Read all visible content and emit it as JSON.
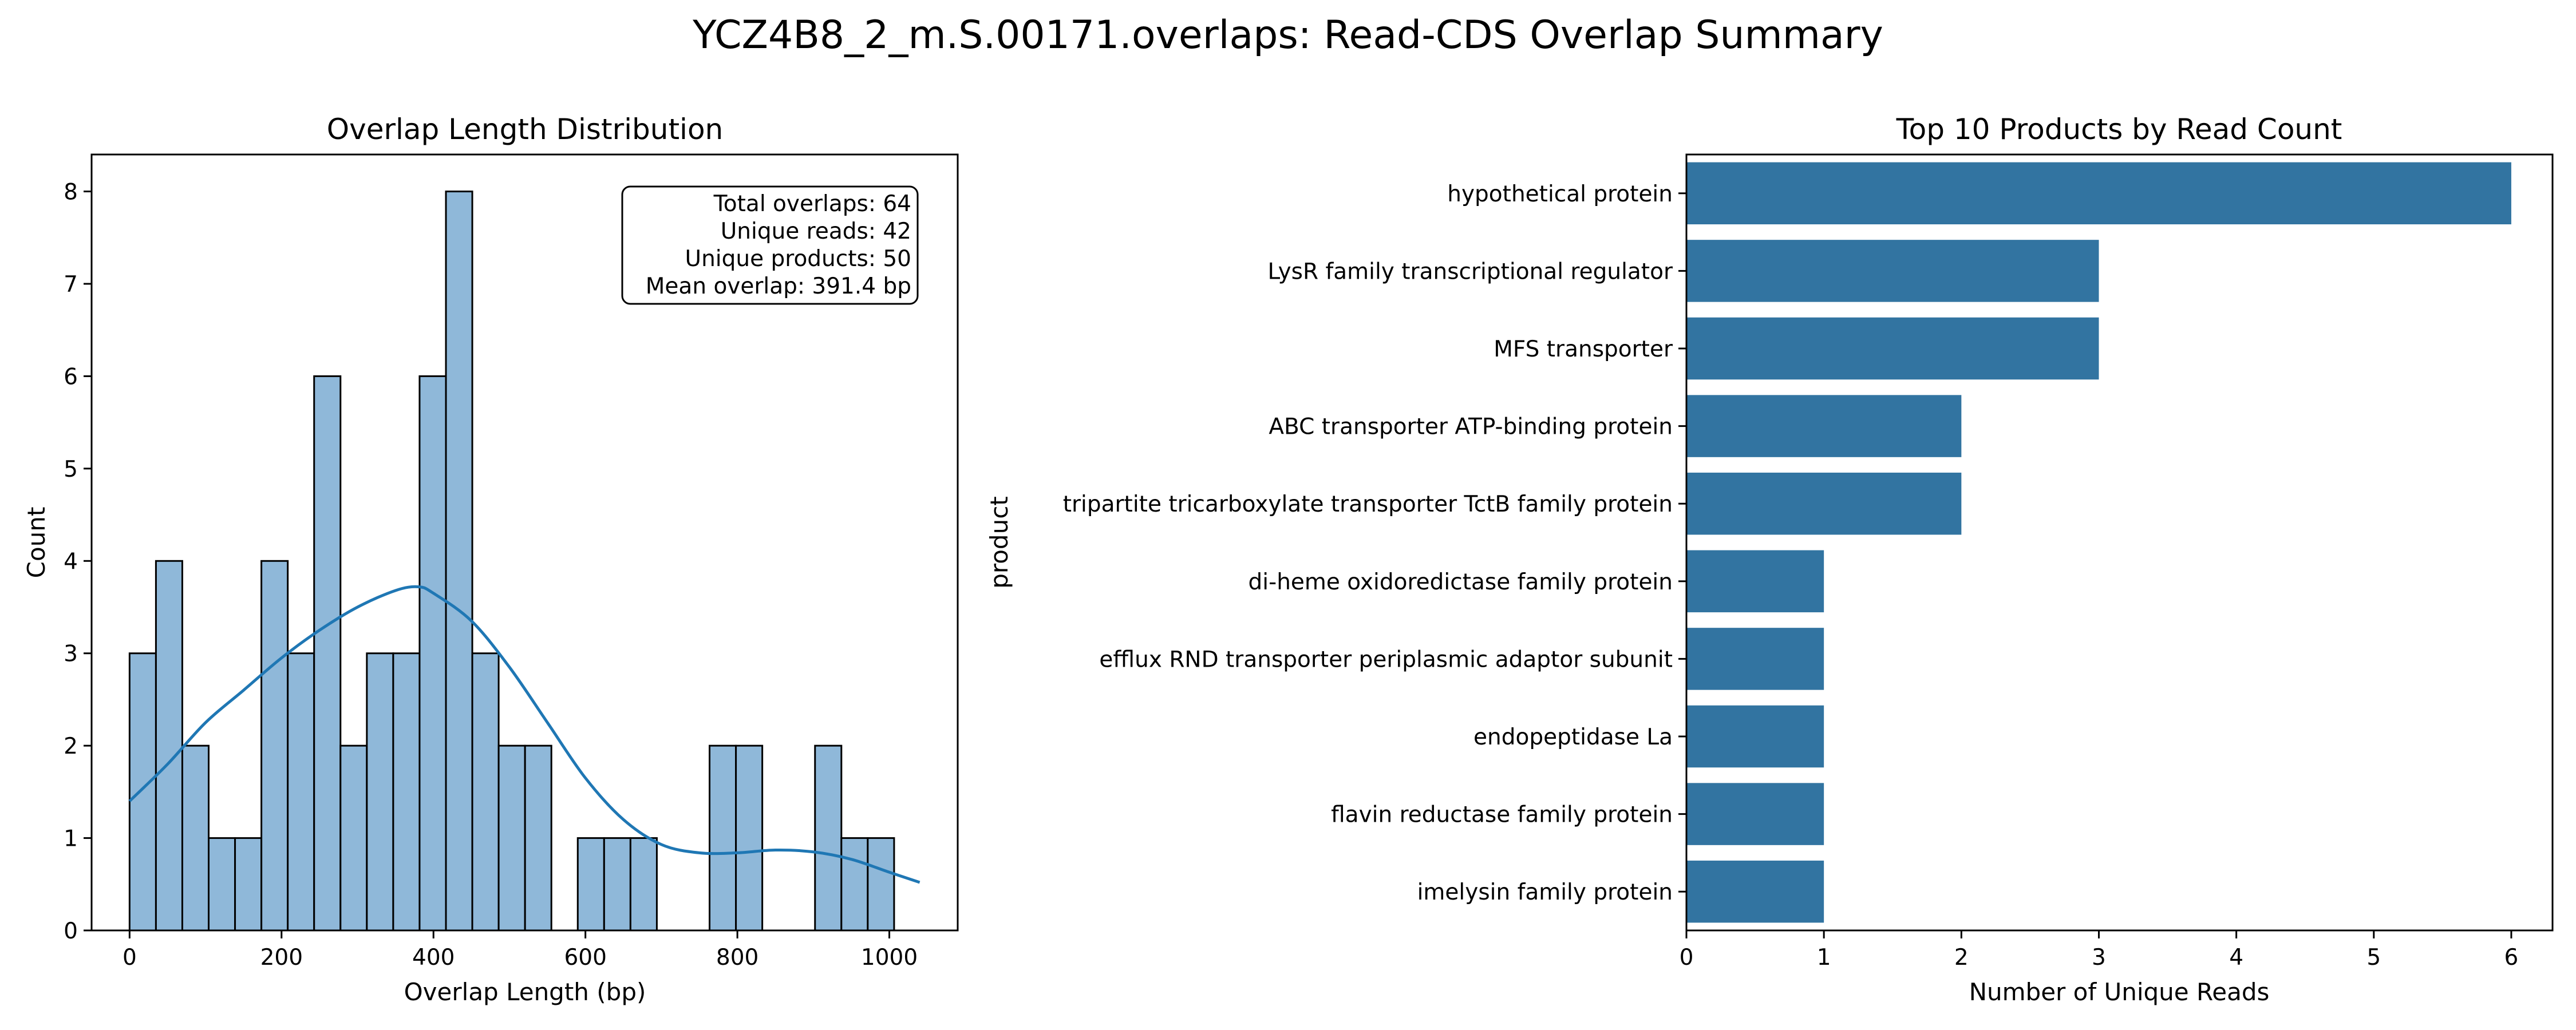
{
  "figure": {
    "title": "YCZ4B8_2_m.S.00171.overlaps: Read-CDS Overlap Summary"
  },
  "colors": {
    "hist_fill": "#8fb8d9",
    "hist_edge": "#000000",
    "kde_line": "#1f77b4",
    "bar_fill": "#3274a1"
  },
  "chart_data": [
    {
      "type": "bar",
      "subtype": "histogram",
      "title": "Overlap Length Distribution",
      "xlabel": "Overlap Length (bp)",
      "ylabel": "Count",
      "xlim": [
        -50,
        1090
      ],
      "ylim": [
        0,
        8.4
      ],
      "xticks": [
        0,
        200,
        400,
        600,
        800,
        1000
      ],
      "yticks": [
        0,
        1,
        2,
        3,
        4,
        5,
        6,
        7,
        8
      ],
      "bin_width": 34.7,
      "bin_start": 0,
      "counts": [
        3,
        4,
        2,
        1,
        1,
        4,
        3,
        6,
        2,
        3,
        3,
        6,
        8,
        3,
        2,
        2,
        0,
        1,
        1,
        1,
        0,
        0,
        2,
        2,
        0,
        0,
        2,
        1,
        1,
        0
      ],
      "kde": {
        "x": [
          0,
          50,
          100,
          150,
          200,
          250,
          300,
          350,
          380,
          400,
          450,
          500,
          550,
          600,
          650,
          700,
          750,
          800,
          850,
          900,
          950,
          1000,
          1040
        ],
        "y": [
          1.4,
          1.8,
          2.25,
          2.6,
          2.95,
          3.25,
          3.5,
          3.68,
          3.72,
          3.65,
          3.35,
          2.85,
          2.25,
          1.65,
          1.2,
          0.93,
          0.84,
          0.84,
          0.87,
          0.85,
          0.77,
          0.63,
          0.52
        ]
      },
      "annotation": {
        "lines": [
          "Total overlaps: 64",
          "Unique reads: 42",
          "Unique products: 50",
          "Mean overlap: 391.4 bp"
        ]
      },
      "grid": false
    },
    {
      "type": "bar",
      "orientation": "horizontal",
      "title": "Top 10 Products by Read Count",
      "xlabel": "Number of Unique Reads",
      "ylabel": "product",
      "xlim": [
        0,
        6.3
      ],
      "xticks": [
        0,
        1,
        2,
        3,
        4,
        5,
        6
      ],
      "categories": [
        "hypothetical protein",
        "LysR family transcriptional regulator",
        "MFS transporter",
        "ABC transporter ATP-binding protein",
        "tripartite tricarboxylate transporter TctB family protein",
        "di-heme oxidoredictase family protein",
        "efflux RND transporter periplasmic adaptor subunit",
        "endopeptidase La",
        "flavin reductase family protein",
        "imelysin family protein"
      ],
      "values": [
        6,
        3,
        3,
        2,
        2,
        1,
        1,
        1,
        1,
        1
      ],
      "grid": false
    }
  ]
}
